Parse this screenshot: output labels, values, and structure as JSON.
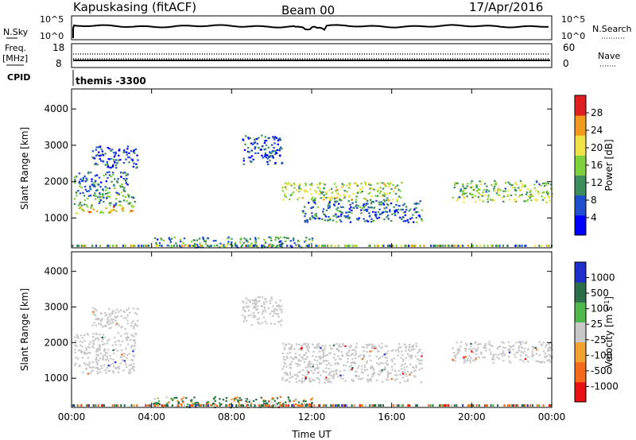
{
  "header": {
    "station": "Kapuskasing (fitACF)",
    "beam": "Beam 00",
    "date": "17/Apr/2016"
  },
  "status_panels": {
    "nsky_label": "N.Sky",
    "nsky_ticks": [
      "10^5",
      "10^0"
    ],
    "nsearch_label": "N.Search",
    "nsearch_ticks": [
      "10^5",
      "10^0"
    ],
    "freq_label": "Freq.",
    "freq_unit": "[MHz]",
    "freq_ticks": [
      "18",
      "8"
    ],
    "nave_label": "Nave",
    "nave_ticks": [
      "60",
      "0"
    ],
    "cpid_label": "CPID",
    "cpid_value": "themis -3300"
  },
  "power_legend": {
    "title": "Power [dB]",
    "ticks": [
      "28",
      "24",
      "20",
      "16",
      "12",
      "8",
      "4"
    ],
    "colors": [
      "#0000ff",
      "#1f4fcc",
      "#3c8f5c",
      "#7fd13b",
      "#f2e24a",
      "#f29a1f",
      "#e02020"
    ]
  },
  "velocity_legend": {
    "title": "Velocity [m s",
    "title_sup": "-1",
    "title_close": "]",
    "ticks": [
      "1000",
      "500",
      "100",
      "25",
      "-25",
      "-100",
      "-500",
      "-1000"
    ],
    "colors": [
      "#1f2fcc",
      "#2a6e4a",
      "#4fb84a",
      "#c8c8c8",
      "#f2a030",
      "#f26a1a",
      "#e81010"
    ]
  },
  "chart_data": [
    {
      "type": "heatmap",
      "title": "Power",
      "xlabel": "",
      "ylabel": "Slant Range [km]",
      "xlim": [
        0,
        24
      ],
      "ylim": [
        180,
        4550
      ],
      "x_ticks": [
        "00:00",
        "04:00",
        "08:00",
        "12:00",
        "16:00",
        "20:00",
        "00:00"
      ],
      "y_ticks": [
        1000,
        2000,
        3000,
        4000
      ],
      "color_scale": [
        0,
        30
      ],
      "regions": [
        {
          "t0": 0.1,
          "t1": 3.2,
          "r0": 1150,
          "r1": 1350,
          "value": 20
        },
        {
          "t0": 0.1,
          "t1": 3.2,
          "r0": 1350,
          "r1": 1750,
          "value": 12
        },
        {
          "t0": 0.1,
          "t1": 2.8,
          "r0": 1750,
          "r1": 2300,
          "value": 8
        },
        {
          "t0": 1.0,
          "t1": 3.3,
          "r0": 2400,
          "r1": 3000,
          "value": 6
        },
        {
          "t0": 10.5,
          "t1": 16.5,
          "r0": 1500,
          "r1": 2000,
          "value": 16
        },
        {
          "t0": 11.5,
          "t1": 17.5,
          "r0": 900,
          "r1": 1500,
          "value": 8
        },
        {
          "t0": 19.0,
          "t1": 24.0,
          "r0": 1450,
          "r1": 2050,
          "value": 14
        },
        {
          "t0": 4.0,
          "t1": 12.0,
          "r0": 200,
          "r1": 500,
          "value": 10
        },
        {
          "t0": 8.5,
          "t1": 10.5,
          "r0": 2500,
          "r1": 3300,
          "value": 6
        }
      ]
    },
    {
      "type": "heatmap",
      "title": "Velocity",
      "xlabel": "Time UT",
      "ylabel": "Slant Range [km]",
      "xlim": [
        0,
        24
      ],
      "ylim": [
        180,
        4550
      ],
      "x_ticks": [
        "00:00",
        "04:00",
        "08:00",
        "12:00",
        "16:00",
        "20:00",
        "00:00"
      ],
      "y_ticks": [
        1000,
        2000,
        3000,
        4000
      ],
      "color_scale": [
        -1000,
        1000
      ],
      "regions": [
        {
          "t0": 0.1,
          "t1": 3.2,
          "r0": 1150,
          "r1": 2300,
          "value": 0
        },
        {
          "t0": 1.0,
          "t1": 3.3,
          "r0": 2400,
          "r1": 3000,
          "value": 0
        },
        {
          "t0": 10.5,
          "t1": 17.5,
          "r0": 900,
          "r1": 2000,
          "value": 0
        },
        {
          "t0": 19.0,
          "t1": 24.0,
          "r0": 1450,
          "r1": 2050,
          "value": 0
        },
        {
          "t0": 4.0,
          "t1": 12.0,
          "r0": 200,
          "r1": 500,
          "value": 100
        },
        {
          "t0": 8.5,
          "t1": 10.5,
          "r0": 2500,
          "r1": 3300,
          "value": 0
        }
      ]
    }
  ]
}
